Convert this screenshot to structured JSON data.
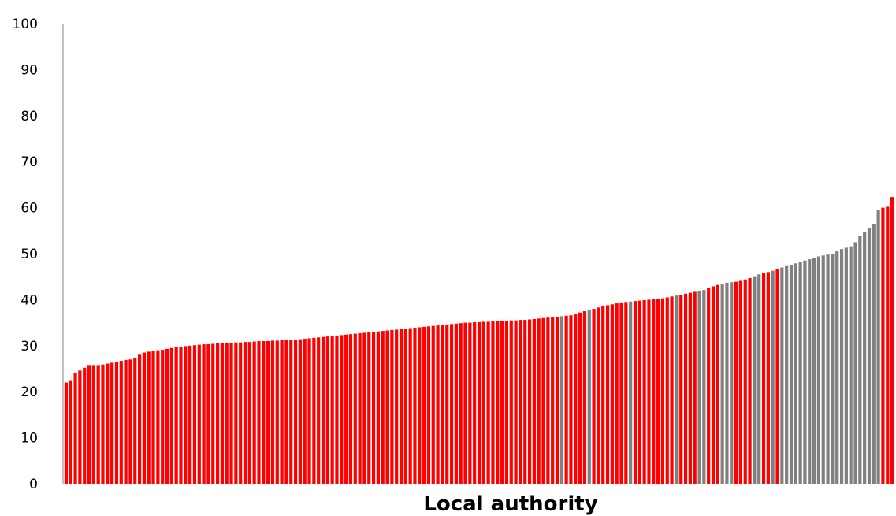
{
  "chart_data": {
    "type": "bar",
    "xlabel": "Local authority",
    "ylabel": "",
    "ylim": [
      0,
      100
    ],
    "yticks": [
      "0",
      "10",
      "20",
      "30",
      "40",
      "50",
      "60",
      "70",
      "80",
      "90",
      "100"
    ],
    "grid": false,
    "legend": "none",
    "colors": {
      "red": "#ff0000",
      "grey": "#808080",
      "axis": "#808080"
    },
    "values": [
      22,
      22.5,
      24,
      24.6,
      25.2,
      25.8,
      25.8,
      25.8,
      25.9,
      26.1,
      26.3,
      26.5,
      26.7,
      26.9,
      27,
      27.3,
      28.2,
      28.5,
      28.7,
      28.9,
      29,
      29.1,
      29.3,
      29.5,
      29.7,
      29.8,
      29.9,
      30,
      30.1,
      30.2,
      30.3,
      30.3,
      30.4,
      30.5,
      30.5,
      30.6,
      30.6,
      30.7,
      30.7,
      30.8,
      30.8,
      30.9,
      31,
      31,
      31,
      31.1,
      31.1,
      31.2,
      31.2,
      31.3,
      31.3,
      31.4,
      31.5,
      31.6,
      31.7,
      31.8,
      31.9,
      32,
      32.1,
      32.2,
      32.3,
      32.4,
      32.5,
      32.6,
      32.7,
      32.8,
      32.9,
      33,
      33.1,
      33.2,
      33.3,
      33.4,
      33.5,
      33.6,
      33.7,
      33.8,
      33.9,
      34,
      34.1,
      34.2,
      34.3,
      34.4,
      34.5,
      34.6,
      34.7,
      34.8,
      34.9,
      35,
      35,
      35.1,
      35.1,
      35.2,
      35.2,
      35.3,
      35.3,
      35.4,
      35.4,
      35.5,
      35.5,
      35.6,
      35.6,
      35.7,
      35.8,
      35.9,
      36,
      36.1,
      36.2,
      36.3,
      36.4,
      36.5,
      36.6,
      36.8,
      37.2,
      37.5,
      37.8,
      38,
      38.3,
      38.6,
      38.8,
      39,
      39.2,
      39.4,
      39.5,
      39.6,
      39.7,
      39.8,
      39.9,
      40,
      40.1,
      40.2,
      40.3,
      40.5,
      40.7,
      40.9,
      41.1,
      41.3,
      41.5,
      41.7,
      41.9,
      42.1,
      42.5,
      42.9,
      43.2,
      43.5,
      43.7,
      43.8,
      43.9,
      44.1,
      44.4,
      44.7,
      45.1,
      45.5,
      45.8,
      46,
      46.3,
      46.6,
      47,
      47.3,
      47.6,
      47.9,
      48.2,
      48.5,
      48.8,
      49.1,
      49.4,
      49.6,
      49.8,
      50,
      50.5,
      51,
      51.3,
      51.6,
      52.5,
      53.8,
      54.8,
      55.5,
      56.5,
      59.5,
      60,
      60.2,
      62.3
    ],
    "highlight": [
      "r",
      "r",
      "r",
      "r",
      "r",
      "r",
      "r",
      "r",
      "r",
      "r",
      "r",
      "r",
      "r",
      "r",
      "r",
      "r",
      "r",
      "r",
      "r",
      "r",
      "r",
      "r",
      "r",
      "r",
      "r",
      "r",
      "r",
      "r",
      "r",
      "r",
      "r",
      "r",
      "r",
      "r",
      "r",
      "r",
      "r",
      "r",
      "r",
      "r",
      "r",
      "r",
      "r",
      "r",
      "r",
      "r",
      "r",
      "r",
      "r",
      "r",
      "r",
      "r",
      "r",
      "r",
      "r",
      "r",
      "r",
      "r",
      "r",
      "r",
      "r",
      "r",
      "r",
      "r",
      "r",
      "r",
      "r",
      "r",
      "r",
      "r",
      "r",
      "r",
      "r",
      "r",
      "r",
      "r",
      "r",
      "r",
      "r",
      "r",
      "r",
      "r",
      "r",
      "r",
      "r",
      "r",
      "r",
      "r",
      "r",
      "r",
      "r",
      "r",
      "r",
      "r",
      "r",
      "r",
      "r",
      "r",
      "r",
      "r",
      "r",
      "r",
      "r",
      "r",
      "r",
      "r",
      "r",
      "r",
      "g",
      "r",
      "r",
      "r",
      "r",
      "r",
      "g",
      "r",
      "r",
      "r",
      "r",
      "r",
      "r",
      "r",
      "r",
      "g",
      "r",
      "r",
      "r",
      "r",
      "r",
      "r",
      "r",
      "r",
      "r",
      "g",
      "r",
      "r",
      "r",
      "r",
      "g",
      "g",
      "r",
      "r",
      "r",
      "g",
      "g",
      "g",
      "r",
      "r",
      "r",
      "r",
      "g",
      "g",
      "r",
      "r",
      "g",
      "r",
      "g",
      "g",
      "g",
      "g",
      "g",
      "g",
      "g",
      "g",
      "g",
      "g",
      "g",
      "g",
      "g",
      "g",
      "g",
      "g",
      "g",
      "g",
      "g",
      "g",
      "g",
      "g"
    ]
  }
}
